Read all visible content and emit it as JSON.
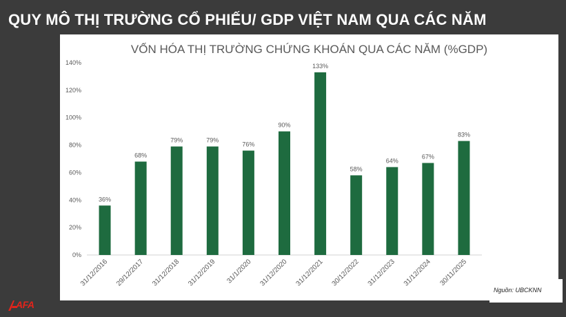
{
  "slide_title": "QUY MÔ THỊ TRƯỜNG CỔ PHIẾU/ GDP VIỆT NAM QUA CÁC NĂM",
  "source": "Nguồn: UBCKNN",
  "logo": {
    "text": "AFA",
    "icon": "logo-mark-icon",
    "color": "#e2241b"
  },
  "colors": {
    "bar": "#1e6b3f",
    "background": "#3b3b3b",
    "card": "#ffffff",
    "text": "#595959"
  },
  "chart_data": {
    "type": "bar",
    "title": "VỐN HÓA THỊ TRƯỜNG CHỨNG KHOÁN QUA CÁC NĂM (%GDP)",
    "xlabel": "",
    "ylabel": "",
    "ylim": [
      0,
      140
    ],
    "yticks": [
      "0%",
      "20%",
      "40%",
      "60%",
      "80%",
      "100%",
      "120%",
      "140%"
    ],
    "ytick_values": [
      0,
      20,
      40,
      60,
      80,
      100,
      120,
      140
    ],
    "grid": false,
    "categories": [
      "31/12/2016",
      "29/12/2017",
      "31/12/2018",
      "31/12/2019",
      "31/1/2020",
      "31/12/2020",
      "31/12/2021",
      "30/12/2022",
      "31/12/2023",
      "31/12/2024",
      "30/11/2025"
    ],
    "values": [
      36,
      68,
      79,
      79,
      76,
      90,
      133,
      58,
      64,
      67,
      83
    ],
    "data_labels": [
      "36%",
      "68%",
      "79%",
      "79%",
      "76%",
      "90%",
      "133%",
      "58%",
      "64%",
      "67%",
      "83%"
    ]
  }
}
